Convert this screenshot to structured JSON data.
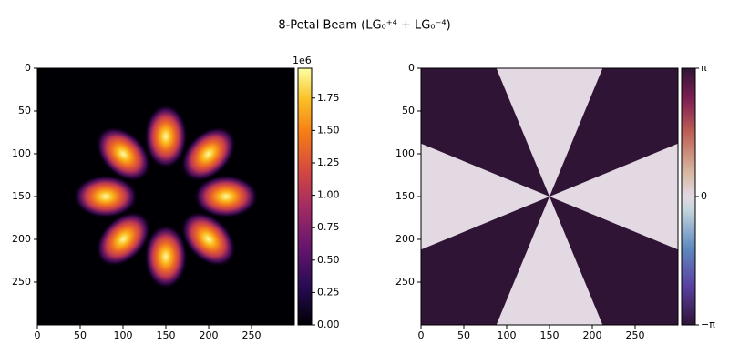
{
  "title": "8-Petal Beam (LG₀⁺⁴ + LG₀⁻⁴)",
  "chart_data": [
    {
      "type": "heatmap",
      "colormap": "inferno",
      "xlim": [
        0,
        300
      ],
      "ylim": [
        300,
        0
      ],
      "xticks": [
        0,
        50,
        100,
        150,
        200,
        250
      ],
      "yticks": [
        0,
        50,
        100,
        150,
        200,
        250
      ],
      "clim": [
        0,
        1.98
      ],
      "colorbar_offset": "1e6",
      "cticks": [
        {
          "value": 0,
          "label": "0.00"
        },
        0.25,
        {
          "value": 0.5,
          "label": "0.50"
        },
        0.75,
        {
          "value": 1,
          "label": "1.00"
        },
        1.25,
        {
          "value": 1.5,
          "label": "1.50"
        },
        1.75
      ]
    },
    {
      "type": "heatmap",
      "colormap": "twilight",
      "xlim": [
        0,
        300
      ],
      "ylim": [
        300,
        0
      ],
      "xticks": [
        0,
        50,
        100,
        150,
        200,
        250
      ],
      "yticks": [
        0,
        50,
        100,
        150,
        200,
        250
      ],
      "clim": [
        -3.14159,
        3.14159
      ],
      "cticks": [
        {
          "value": -3.14159,
          "label": "−π"
        },
        0,
        {
          "value": 3.14159,
          "label": "π"
        }
      ]
    }
  ]
}
